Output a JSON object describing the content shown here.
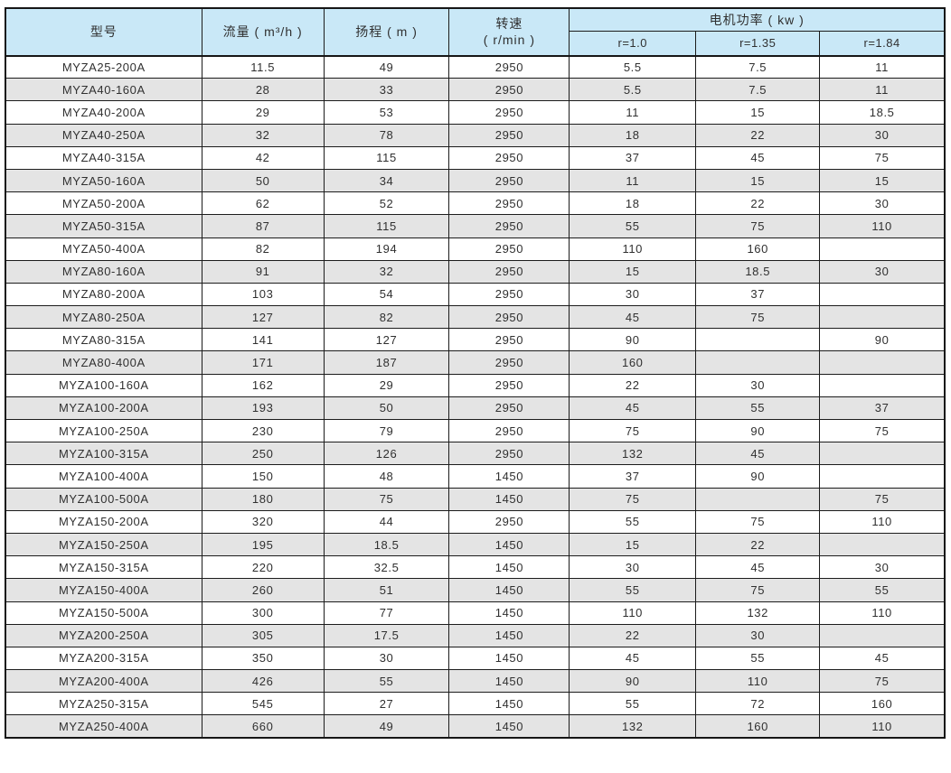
{
  "colors": {
    "header_background": "#c9e8f7",
    "row_background": "#ffffff",
    "row_alt_background": "#e4e4e4",
    "border": "#1c1c1c",
    "text": "#303030"
  },
  "table": {
    "header": {
      "model": "型号",
      "flow": "流量 ( m³/h )",
      "head": "扬程 ( m )",
      "speed_line1": "转速",
      "speed_line2": "( r/min )",
      "power_group": "电机功率 ( kw )",
      "power_r10": "r=1.0",
      "power_r135": "r=1.35",
      "power_r184": "r=1.84"
    },
    "column_keys": [
      "model",
      "flow",
      "head",
      "speed",
      "power-r10",
      "power-r135",
      "power-r184"
    ],
    "rows": [
      [
        "MYZA25-200A",
        "11.5",
        "49",
        "2950",
        "5.5",
        "7.5",
        "11"
      ],
      [
        "MYZA40-160A",
        "28",
        "33",
        "2950",
        "5.5",
        "7.5",
        "11"
      ],
      [
        "MYZA40-200A",
        "29",
        "53",
        "2950",
        "11",
        "15",
        "18.5"
      ],
      [
        "MYZA40-250A",
        "32",
        "78",
        "2950",
        "18",
        "22",
        "30"
      ],
      [
        "MYZA40-315A",
        "42",
        "115",
        "2950",
        "37",
        "45",
        "75"
      ],
      [
        "MYZA50-160A",
        "50",
        "34",
        "2950",
        "11",
        "15",
        "15"
      ],
      [
        "MYZA50-200A",
        "62",
        "52",
        "2950",
        "18",
        "22",
        "30"
      ],
      [
        "MYZA50-315A",
        "87",
        "115",
        "2950",
        "55",
        "75",
        "110"
      ],
      [
        "MYZA50-400A",
        "82",
        "194",
        "2950",
        "110",
        "160",
        ""
      ],
      [
        "MYZA80-160A",
        "91",
        "32",
        "2950",
        "15",
        "18.5",
        "30"
      ],
      [
        "MYZA80-200A",
        "103",
        "54",
        "2950",
        "30",
        "37",
        ""
      ],
      [
        "MYZA80-250A",
        "127",
        "82",
        "2950",
        "45",
        "75",
        ""
      ],
      [
        "MYZA80-315A",
        "141",
        "127",
        "2950",
        "90",
        "",
        "90"
      ],
      [
        "MYZA80-400A",
        "171",
        "187",
        "2950",
        "160",
        "",
        ""
      ],
      [
        "MYZA100-160A",
        "162",
        "29",
        "2950",
        "22",
        "30",
        ""
      ],
      [
        "MYZA100-200A",
        "193",
        "50",
        "2950",
        "45",
        "55",
        "37"
      ],
      [
        "MYZA100-250A",
        "230",
        "79",
        "2950",
        "75",
        "90",
        "75"
      ],
      [
        "MYZA100-315A",
        "250",
        "126",
        "2950",
        "132",
        "45",
        ""
      ],
      [
        "MYZA100-400A",
        "150",
        "48",
        "1450",
        "37",
        "90",
        ""
      ],
      [
        "MYZA100-500A",
        "180",
        "75",
        "1450",
        "75",
        "",
        "75"
      ],
      [
        "MYZA150-200A",
        "320",
        "44",
        "2950",
        "55",
        "75",
        "110"
      ],
      [
        "MYZA150-250A",
        "195",
        "18.5",
        "1450",
        "15",
        "22",
        ""
      ],
      [
        "MYZA150-315A",
        "220",
        "32.5",
        "1450",
        "30",
        "45",
        "30"
      ],
      [
        "MYZA150-400A",
        "260",
        "51",
        "1450",
        "55",
        "75",
        "55"
      ],
      [
        "MYZA150-500A",
        "300",
        "77",
        "1450",
        "110",
        "132",
        "110"
      ],
      [
        "MYZA200-250A",
        "305",
        "17.5",
        "1450",
        "22",
        "30",
        ""
      ],
      [
        "MYZA200-315A",
        "350",
        "30",
        "1450",
        "45",
        "55",
        "45"
      ],
      [
        "MYZA200-400A",
        "426",
        "55",
        "1450",
        "90",
        "110",
        "75"
      ],
      [
        "MYZA250-315A",
        "545",
        "27",
        "1450",
        "55",
        "72",
        "160"
      ],
      [
        "MYZA250-400A",
        "660",
        "49",
        "1450",
        "132",
        "160",
        "110"
      ]
    ]
  }
}
